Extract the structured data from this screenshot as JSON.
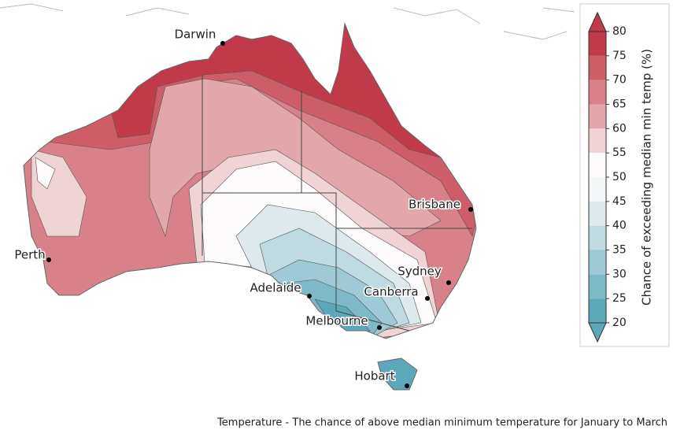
{
  "map": {
    "cities": [
      "Darwin",
      "Brisbane",
      "Perth",
      "Sydney",
      "Adelaide",
      "Canberra",
      "Melbourne",
      "Hobart"
    ],
    "colorbar": {
      "label": "Chance of exceeding median min temp (%)",
      "ticks": [
        20,
        25,
        30,
        35,
        40,
        45,
        50,
        55,
        60,
        65,
        70,
        75,
        80
      ],
      "colors": [
        "#5ca8ba",
        "#7db9c7",
        "#9ecad5",
        "#bedbe2",
        "#dde9ec",
        "#f4f7f8",
        "#fdfbfb",
        "#efd3d5",
        "#e3a6ab",
        "#d8818a",
        "#cd5d68",
        "#c03a4a"
      ]
    }
  },
  "caption": "Temperature - The chance of above median minimum temperature for January to March"
}
